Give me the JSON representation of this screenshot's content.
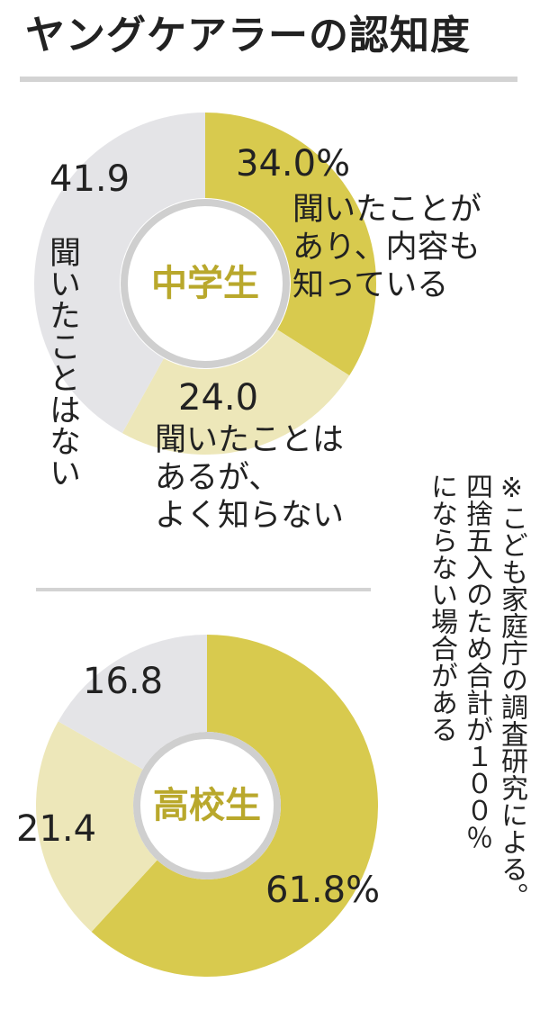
{
  "title": "ヤングケアラーの認知度",
  "note": "※こども家庭庁の調査研究による。\n四捨五入のため合計が１００％\nにならない場合がある",
  "chart_data": [
    {
      "type": "pie",
      "center_label": "中学生",
      "categories": [
        "聞いたことが\nあり、内容も\n知っている",
        "聞いたことは\nあるが、\nよく知らない",
        "聞いたことはない"
      ],
      "values": [
        34.0,
        24.0,
        41.9
      ],
      "value_labels": [
        "34.0%",
        "24.0",
        "41.9"
      ],
      "colors": [
        "#d8ca4e",
        "#ede7b9",
        "#e4e4e7"
      ]
    },
    {
      "type": "pie",
      "center_label": "高校生",
      "values": [
        61.8,
        21.4,
        16.8
      ],
      "value_labels": [
        "61.8%",
        "21.4",
        "16.8"
      ],
      "colors": [
        "#d8ca4e",
        "#ede7b9",
        "#e4e4e7"
      ]
    }
  ]
}
